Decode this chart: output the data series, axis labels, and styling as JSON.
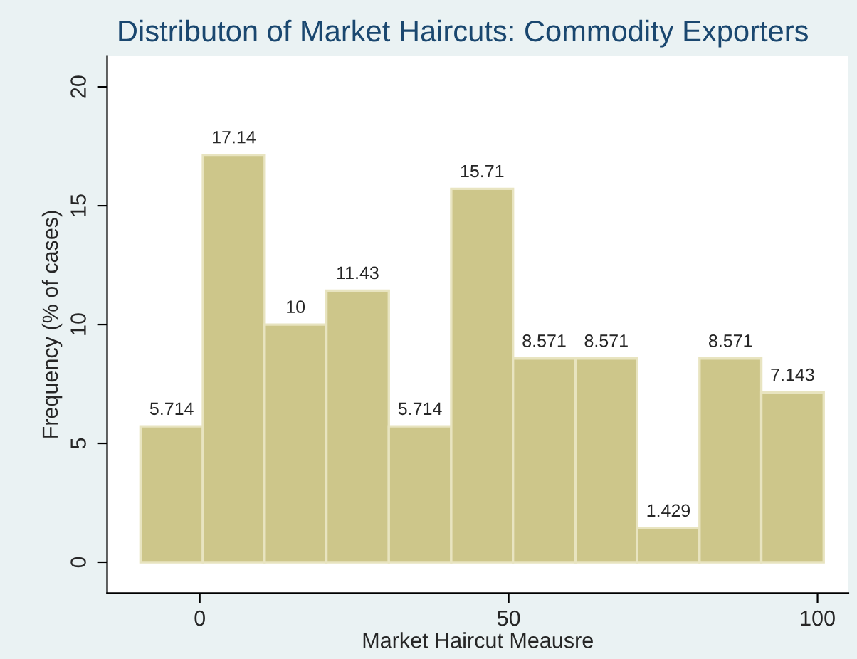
{
  "chart_data": {
    "type": "histogram",
    "title": "Distributon of Market Haircuts: Commodity Exporters",
    "xlabel": "Market Haircut Meausre",
    "ylabel": "Frequency (% of cases)",
    "bins": [
      -9.6,
      0.5,
      10.5,
      20.5,
      30.6,
      40.7,
      50.7,
      60.8,
      70.8,
      80.9,
      90.9,
      101.0
    ],
    "values": [
      5.714,
      17.14,
      10,
      11.43,
      5.714,
      15.71,
      8.571,
      8.571,
      1.429,
      8.571,
      7.143
    ],
    "color": "#cdc68a",
    "data_labels": true,
    "xlim": [
      -15,
      105
    ],
    "xticks": [
      0,
      50,
      100
    ],
    "ylim": [
      -1.3,
      21.3
    ],
    "yticks": [
      0,
      5,
      10,
      15,
      20
    ]
  }
}
